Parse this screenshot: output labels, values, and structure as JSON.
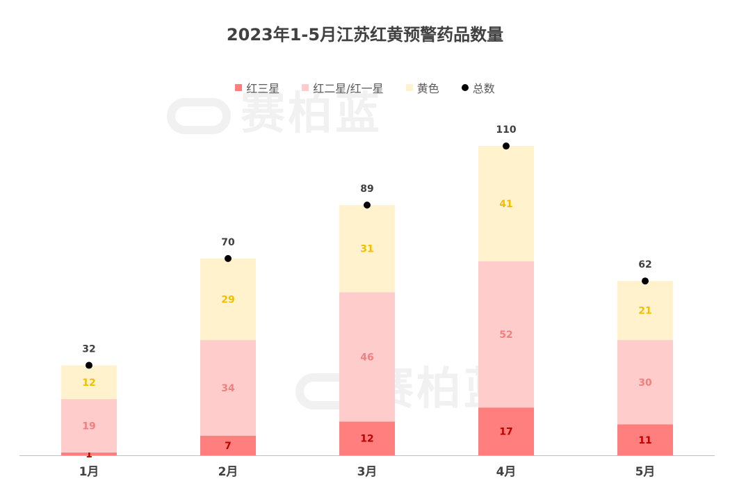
{
  "chart_data": {
    "type": "bar",
    "stacked": true,
    "title": "2023年1-5月江苏红黄预警药品数量",
    "categories": [
      "1月",
      "2月",
      "3月",
      "4月",
      "5月"
    ],
    "series": [
      {
        "name": "红三星",
        "color": "#ff7f7f",
        "label_color": "#c00000",
        "values": [
          1,
          7,
          12,
          17,
          11
        ]
      },
      {
        "name": "红二星/红一星",
        "color": "#ffcccc",
        "label_color": "#f08080",
        "values": [
          19,
          34,
          46,
          52,
          30
        ]
      },
      {
        "name": "黄色",
        "color": "#fff2cc",
        "label_color": "#f0c000",
        "values": [
          12,
          29,
          31,
          41,
          21
        ]
      }
    ],
    "totals": {
      "name": "总数",
      "color": "#000000",
      "values": [
        32,
        70,
        89,
        110,
        62
      ]
    },
    "ylim": [
      0,
      110
    ],
    "legend_position": "top",
    "grid": false
  },
  "watermark": "赛柏蓝"
}
